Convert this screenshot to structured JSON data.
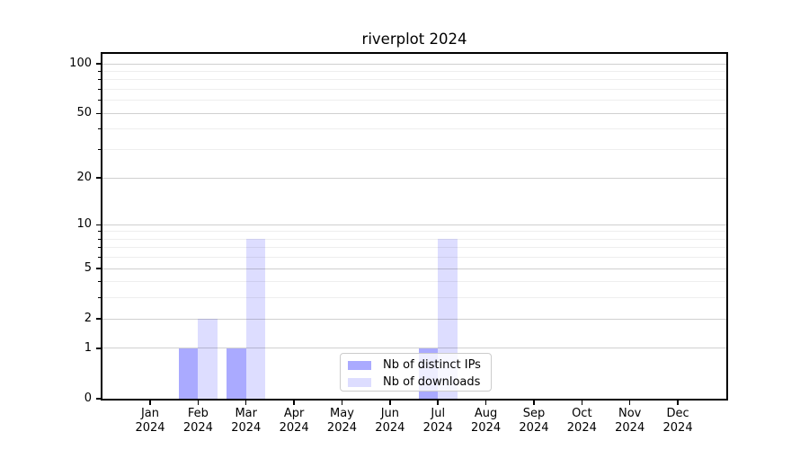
{
  "chart_data": {
    "type": "bar",
    "title": "riverplot 2024",
    "categories": [
      {
        "month": "Jan",
        "year": "2024"
      },
      {
        "month": "Feb",
        "year": "2024"
      },
      {
        "month": "Mar",
        "year": "2024"
      },
      {
        "month": "Apr",
        "year": "2024"
      },
      {
        "month": "May",
        "year": "2024"
      },
      {
        "month": "Jun",
        "year": "2024"
      },
      {
        "month": "Jul",
        "year": "2024"
      },
      {
        "month": "Aug",
        "year": "2024"
      },
      {
        "month": "Sep",
        "year": "2024"
      },
      {
        "month": "Oct",
        "year": "2024"
      },
      {
        "month": "Nov",
        "year": "2024"
      },
      {
        "month": "Dec",
        "year": "2024"
      }
    ],
    "series": [
      {
        "name": "Nb of distinct IPs",
        "color": "#aaaaff",
        "values": [
          0,
          1,
          1,
          0,
          0,
          0,
          1,
          0,
          0,
          0,
          0,
          0
        ]
      },
      {
        "name": "Nb of downloads",
        "color": "#ddddff",
        "values": [
          0,
          2,
          8,
          0,
          0,
          0,
          8,
          0,
          0,
          0,
          0,
          0
        ]
      }
    ],
    "xlabel": "",
    "ylabel": "",
    "yscale": "log1p",
    "ylim": [
      0,
      115
    ],
    "yticks": [
      0,
      1,
      2,
      5,
      10,
      20,
      50,
      100
    ],
    "minor_yticks": [
      3,
      4,
      6,
      7,
      8,
      9,
      30,
      40,
      60,
      70,
      80,
      90
    ],
    "grid": "on",
    "legend_position": "lower center",
    "colors": {
      "major_grid": "#cbcbcb",
      "minor_grid": "#ececec",
      "spine": "#000000",
      "legend_border": "#cccccc",
      "background": "#ffffff"
    }
  }
}
